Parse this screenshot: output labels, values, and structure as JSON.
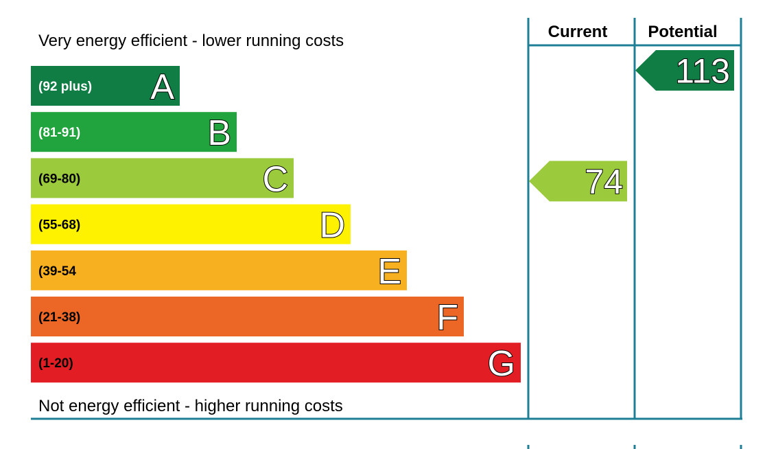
{
  "chart_data": {
    "type": "bar",
    "top_caption": "Very energy efficient - lower running costs",
    "bottom_caption": "Not energy efficient - higher running costs",
    "columns": {
      "current": "Current",
      "potential": "Potential"
    },
    "bands": [
      {
        "letter": "A",
        "range": "(92 plus)",
        "color": "#0f7d44",
        "range_text_color": "#ffffff"
      },
      {
        "letter": "B",
        "range": "(81-91)",
        "color": "#21a33d",
        "range_text_color": "#ffffff"
      },
      {
        "letter": "C",
        "range": "(69-80)",
        "color": "#9bca3c",
        "range_text_color": "#000000"
      },
      {
        "letter": "D",
        "range": "(55-68)",
        "color": "#fff200",
        "range_text_color": "#000000"
      },
      {
        "letter": "E",
        "range": "(39-54",
        "color": "#f7b120",
        "range_text_color": "#000000"
      },
      {
        "letter": "F",
        "range": "(21-38)",
        "color": "#ec6726",
        "range_text_color": "#000000"
      },
      {
        "letter": "G",
        "range": "(1-20)",
        "color": "#e31d24",
        "range_text_color": "#000000"
      }
    ],
    "current": {
      "value": "74",
      "band": "C",
      "color": "#9bca3c"
    },
    "potential": {
      "value": "113",
      "band": "A",
      "color": "#0f7d44"
    },
    "frame_color": "#1c7f96"
  }
}
